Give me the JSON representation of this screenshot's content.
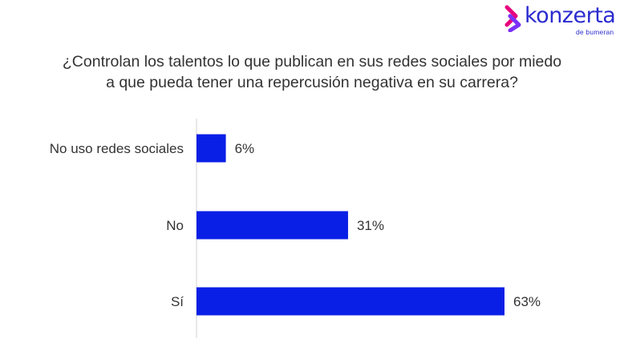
{
  "brand": {
    "name": "konzerta",
    "tagline": "de bumeran",
    "colors": {
      "primary": "#2b2bd0",
      "accent": "#e6007e",
      "secondary": "#7b2ff7"
    }
  },
  "chart_data": {
    "type": "bar",
    "orientation": "horizontal",
    "title_lines": [
      "¿Controlan los talentos lo que publican en sus redes sociales por miedo",
      "a que pueda tener una repercusión negativa en su carrera?"
    ],
    "categories": [
      "No uso redes sociales",
      "No",
      "Sí"
    ],
    "values": [
      6,
      31,
      63
    ],
    "value_labels": [
      "6%",
      "31%",
      "63%"
    ],
    "unit": "%",
    "xlim": [
      0,
      63
    ],
    "bar_color": "#0a1fe6",
    "grid": false,
    "legend": "none"
  }
}
